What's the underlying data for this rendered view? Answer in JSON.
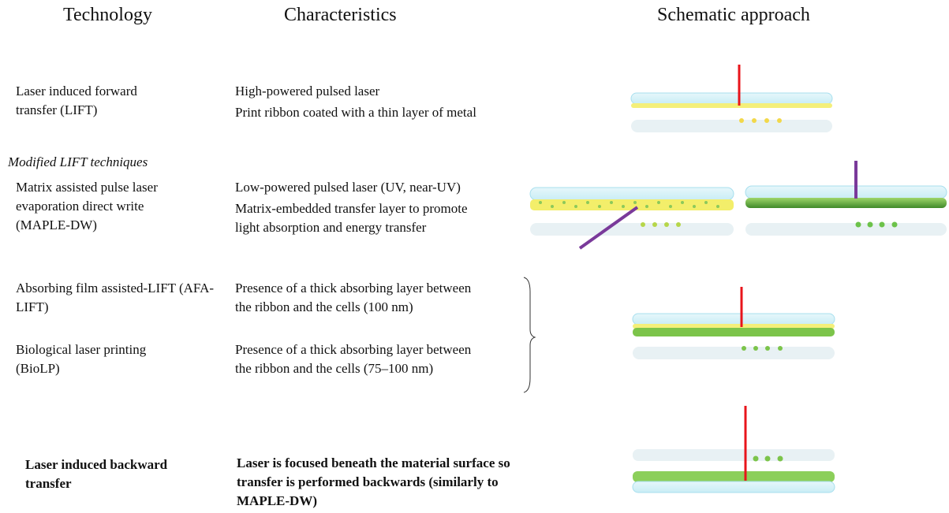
{
  "header": {
    "technology": "Technology",
    "characteristics": "Characteristics",
    "schematic": "Schematic approach"
  },
  "section_label": "Modified LIFT techniques",
  "rows": [
    {
      "technology": "Laser induced forward transfer (LIFT)",
      "characteristics": [
        "High-powered pulsed laser",
        "Print ribbon coated with a thin layer of metal"
      ]
    },
    {
      "technology": "Matrix assisted pulse laser evaporation direct write (MAPLE-DW)",
      "characteristics": [
        "Low-powered pulsed laser (UV, near-UV)",
        "Matrix-embedded transfer layer to promote light absorption and energy transfer"
      ]
    },
    {
      "technology": "Absorbing film assisted-LIFT (AFA-LIFT)",
      "characteristics": [
        "Presence of a thick absorbing layer between the ribbon and the cells (100 nm)"
      ]
    },
    {
      "technology": "Biological laser printing (BioLP)",
      "characteristics": [
        "Presence of a thick absorbing layer between the ribbon and the cells (75–100 nm)"
      ]
    },
    {
      "technology": "Laser induced backward transfer",
      "characteristics": [
        "Laser is focused beneath the material surface so transfer is performed backwards (similarly to MAPLE-DW)"
      ]
    }
  ]
}
